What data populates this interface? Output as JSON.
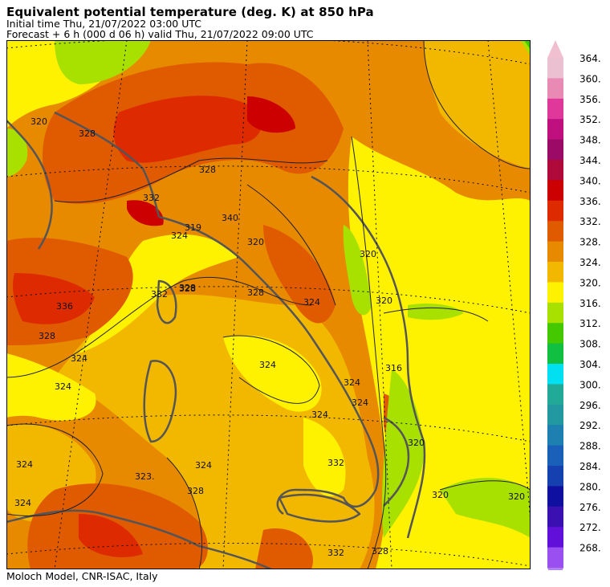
{
  "header": {
    "title": "Equivalent potential temperature (deg. K) at 850 hPa",
    "initial_time": "Initial time  Thu, 21/07/2022  03:00 UTC",
    "forecast": "Forecast +   6 h  (000 d 06 h)  valid Thu, 21/07/2022 09:00 UTC"
  },
  "footer": {
    "credit": "Moloch Model, CNR-ISAC, Italy"
  },
  "legend": {
    "levels": [
      {
        "label": "364.",
        "color": "#ebc0d0"
      },
      {
        "label": "360.",
        "color": "#e88ab4"
      },
      {
        "label": "356.",
        "color": "#e0389a"
      },
      {
        "label": "352.",
        "color": "#c01080"
      },
      {
        "label": "348.",
        "color": "#9a0a66"
      },
      {
        "label": "344.",
        "color": "#b00a3a"
      },
      {
        "label": "340.",
        "color": "#cc0000"
      },
      {
        "label": "336.",
        "color": "#dd2a00"
      },
      {
        "label": "332.",
        "color": "#e05a00"
      },
      {
        "label": "328.",
        "color": "#e88a00"
      },
      {
        "label": "324.",
        "color": "#f2b800"
      },
      {
        "label": "320.",
        "color": "#fff200"
      },
      {
        "label": "316.",
        "color": "#a8e000"
      },
      {
        "label": "312.",
        "color": "#44c800"
      },
      {
        "label": "308.",
        "color": "#11c040"
      },
      {
        "label": "304.",
        "color": "#00e0f0"
      },
      {
        "label": "300.",
        "color": "#22aa99"
      },
      {
        "label": "296.",
        "color": "#2299a0"
      },
      {
        "label": "292.",
        "color": "#1e80b0"
      },
      {
        "label": "288.",
        "color": "#1a60b8"
      },
      {
        "label": "284.",
        "color": "#1540b0"
      },
      {
        "label": "280.",
        "color": "#1010a0"
      },
      {
        "label": "276.",
        "color": "#3a10b0"
      },
      {
        "label": "272.",
        "color": "#6010d8"
      },
      {
        "label": "268.",
        "color": "#9a50f0"
      }
    ],
    "top_arrow_color": "#f0c0d0",
    "bottom_arrow_color": "#b080f0"
  },
  "map": {
    "contour_labels": [
      "320",
      "328",
      "328",
      "324",
      "332",
      "336",
      "328",
      "332",
      "324",
      "324",
      "328",
      "324",
      "324",
      "320",
      "324",
      "320",
      "320",
      "320",
      "320",
      "324",
      "316",
      "332",
      "340",
      "328",
      "319",
      "323.",
      "328",
      "324",
      "328",
      "324",
      "324",
      "324",
      "320",
      "332",
      "328"
    ]
  }
}
